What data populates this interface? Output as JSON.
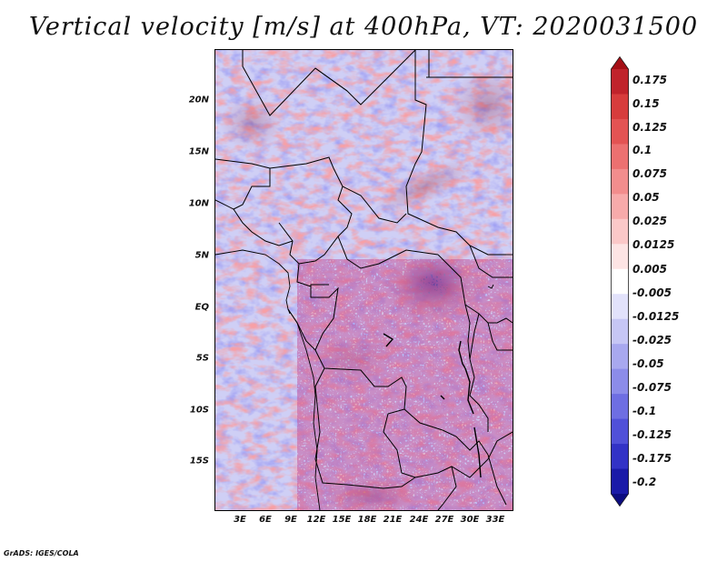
{
  "title": "Vertical velocity [m/s] at 400hPa, VT: 2020031500",
  "footer": "GrADS: IGES/COLA",
  "map": {
    "variable": "Vertical velocity",
    "units": "m/s",
    "level": "400hPa",
    "valid_time": "2020031500",
    "lat_ticks": [
      "20N",
      "15N",
      "10N",
      "5N",
      "EQ",
      "5S",
      "10S",
      "15S"
    ],
    "lon_ticks": [
      "3E",
      "6E",
      "9E",
      "12E",
      "15E",
      "18E",
      "21E",
      "24E",
      "27E",
      "30E",
      "33E"
    ],
    "domain_lon": [
      0,
      35
    ],
    "domain_lat": [
      -20,
      25
    ]
  },
  "colorbar": {
    "labels": [
      "0.175",
      "0.15",
      "0.125",
      "0.1",
      "0.075",
      "0.05",
      "0.025",
      "0.0125",
      "0.005",
      "-0.005",
      "-0.0125",
      "-0.025",
      "-0.05",
      "-0.075",
      "-0.1",
      "-0.125",
      "-0.175",
      "-0.2"
    ],
    "colors": [
      "#a50f15",
      "#c0232b",
      "#d73c3c",
      "#e35353",
      "#ec7070",
      "#f28d8d",
      "#f7aaaa",
      "#fbc8c8",
      "#fde4e4",
      "#ffffff",
      "#e2e2fb",
      "#c6c6f5",
      "#a8a8ef",
      "#8c8ce9",
      "#6e6ee2",
      "#5050d8",
      "#3232c6",
      "#1a1aa8",
      "#0c0c80"
    ]
  }
}
